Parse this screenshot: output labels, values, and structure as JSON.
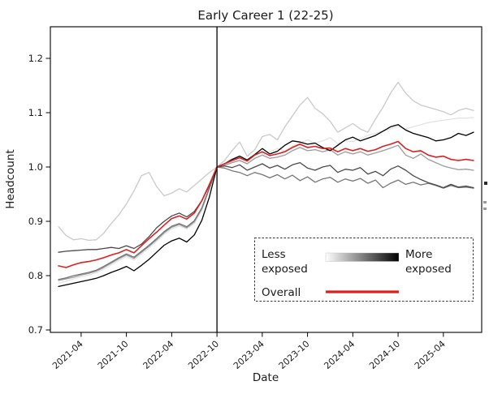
{
  "title": "Early Career 1 (22-25)",
  "legend": {
    "less_line1": "Less",
    "less_line2": "exposed",
    "more_line1": "More",
    "more_line2": "exposed",
    "overall_label": "Overall",
    "gradient_start_color": "#ffffff",
    "gradient_end_color": "#000000",
    "overall_color": "#dd1f1f"
  },
  "chart_data": {
    "type": "line",
    "title": "Early Career 1 (22-25)",
    "xlabel": "Date",
    "ylabel": "Headcount",
    "ylim": [
      0.7,
      1.25
    ],
    "yticks": [
      0.7,
      0.8,
      0.9,
      1.0,
      1.1,
      1.2
    ],
    "xtick_labels": [
      "2021-04",
      "2021-10",
      "2022-04",
      "2022-10",
      "2023-04",
      "2023-10",
      "2024-04",
      "2024-10",
      "2025-04"
    ],
    "vline_month": "2022-10",
    "legend_position": "lower right inside axes, dashed box",
    "grid": false,
    "x_months": [
      "2021-01",
      "2021-02",
      "2021-03",
      "2021-04",
      "2021-05",
      "2021-06",
      "2021-07",
      "2021-08",
      "2021-09",
      "2021-10",
      "2021-11",
      "2021-12",
      "2022-01",
      "2022-02",
      "2022-03",
      "2022-04",
      "2022-05",
      "2022-06",
      "2022-07",
      "2022-08",
      "2022-09",
      "2022-10",
      "2022-11",
      "2022-12",
      "2023-01",
      "2023-02",
      "2023-03",
      "2023-04",
      "2023-05",
      "2023-06",
      "2023-07",
      "2023-08",
      "2023-09",
      "2023-10",
      "2023-11",
      "2023-12",
      "2024-01",
      "2024-02",
      "2024-03",
      "2024-04",
      "2024-05",
      "2024-06",
      "2024-07",
      "2024-08",
      "2024-09",
      "2024-10",
      "2024-11",
      "2024-12",
      "2025-01",
      "2025-02",
      "2025-03",
      "2025-04",
      "2025-05",
      "2025-06",
      "2025-07",
      "2025-08"
    ],
    "series": [
      {
        "name": "exposure_group_1_least_exposed",
        "color": "#e3e3e3",
        "values": [
          0.786,
          0.79,
          0.794,
          0.798,
          0.801,
          0.805,
          0.812,
          0.82,
          0.828,
          0.835,
          0.829,
          0.84,
          0.851,
          0.863,
          0.876,
          0.886,
          0.891,
          0.886,
          0.896,
          0.92,
          0.958,
          1.0,
          1.004,
          1.01,
          1.013,
          1.006,
          1.016,
          1.022,
          1.028,
          1.034,
          1.03,
          1.038,
          1.044,
          1.05,
          1.044,
          1.048,
          1.054,
          1.043,
          1.048,
          1.047,
          1.052,
          1.058,
          1.062,
          1.066,
          1.07,
          1.075,
          1.07,
          1.074,
          1.078,
          1.082,
          1.084,
          1.086,
          1.088,
          1.09,
          1.09,
          1.091
        ]
      },
      {
        "name": "exposure_group_2",
        "color": "#c9c9c9",
        "values": [
          0.89,
          0.874,
          0.866,
          0.868,
          0.865,
          0.866,
          0.878,
          0.896,
          0.912,
          0.932,
          0.956,
          0.984,
          0.99,
          0.964,
          0.947,
          0.952,
          0.96,
          0.954,
          0.966,
          0.978,
          0.99,
          1.0,
          1.012,
          1.03,
          1.046,
          1.02,
          1.032,
          1.056,
          1.06,
          1.05,
          1.074,
          1.094,
          1.114,
          1.128,
          1.108,
          1.098,
          1.084,
          1.064,
          1.072,
          1.08,
          1.07,
          1.064,
          1.088,
          1.11,
          1.136,
          1.156,
          1.136,
          1.122,
          1.114,
          1.11,
          1.106,
          1.102,
          1.096,
          1.104,
          1.108,
          1.104
        ]
      },
      {
        "name": "exposure_group_3",
        "color": "#9b9b9b",
        "values": [
          0.791,
          0.794,
          0.797,
          0.801,
          0.804,
          0.808,
          0.815,
          0.823,
          0.831,
          0.838,
          0.832,
          0.843,
          0.854,
          0.866,
          0.879,
          0.889,
          0.894,
          0.888,
          0.899,
          0.923,
          0.96,
          1.0,
          1.003,
          1.008,
          1.012,
          1.006,
          1.016,
          1.022,
          1.016,
          1.018,
          1.022,
          1.03,
          1.036,
          1.03,
          1.032,
          1.028,
          1.032,
          1.022,
          1.028,
          1.024,
          1.028,
          1.022,
          1.026,
          1.03,
          1.035,
          1.04,
          1.022,
          1.016,
          1.024,
          1.014,
          1.008,
          1.002,
          0.998,
          0.995,
          0.996,
          0.994
        ]
      },
      {
        "name": "exposure_group_4",
        "color": "#757575",
        "values": [
          0.793,
          0.796,
          0.8,
          0.803,
          0.806,
          0.81,
          0.817,
          0.825,
          0.833,
          0.84,
          0.834,
          0.845,
          0.856,
          0.868,
          0.881,
          0.891,
          0.896,
          0.89,
          0.901,
          0.925,
          0.962,
          1.0,
          0.998,
          0.993,
          0.99,
          0.984,
          0.99,
          0.986,
          0.98,
          0.986,
          0.978,
          0.985,
          0.975,
          0.982,
          0.972,
          0.978,
          0.981,
          0.972,
          0.978,
          0.974,
          0.979,
          0.97,
          0.976,
          0.962,
          0.97,
          0.976,
          0.968,
          0.972,
          0.967,
          0.97,
          0.966,
          0.961,
          0.966,
          0.962,
          0.963,
          0.961
        ]
      },
      {
        "name": "exposure_group_5",
        "color": "#4a4a4a",
        "values": [
          0.843,
          0.845,
          0.846,
          0.847,
          0.848,
          0.848,
          0.85,
          0.852,
          0.85,
          0.855,
          0.85,
          0.858,
          0.872,
          0.888,
          0.9,
          0.91,
          0.915,
          0.908,
          0.918,
          0.938,
          0.966,
          1.0,
          1.002,
          0.999,
          1.004,
          0.994,
          1.0,
          1.006,
          0.998,
          1.003,
          0.996,
          1.004,
          1.008,
          0.998,
          0.994,
          1.0,
          1.003,
          0.99,
          0.996,
          0.994,
          0.999,
          0.987,
          0.992,
          0.984,
          0.996,
          1.002,
          0.994,
          0.984,
          0.977,
          0.971,
          0.967,
          0.962,
          0.968,
          0.963,
          0.965,
          0.962
        ]
      },
      {
        "name": "exposure_group_6_most_exposed",
        "color": "#000000",
        "values": [
          0.78,
          0.783,
          0.786,
          0.789,
          0.792,
          0.795,
          0.8,
          0.806,
          0.811,
          0.817,
          0.809,
          0.819,
          0.83,
          0.843,
          0.856,
          0.864,
          0.869,
          0.862,
          0.875,
          0.902,
          0.945,
          1.0,
          1.006,
          1.014,
          1.02,
          1.013,
          1.023,
          1.034,
          1.024,
          1.029,
          1.04,
          1.048,
          1.046,
          1.042,
          1.044,
          1.036,
          1.03,
          1.04,
          1.05,
          1.055,
          1.048,
          1.053,
          1.058,
          1.066,
          1.074,
          1.078,
          1.068,
          1.062,
          1.058,
          1.054,
          1.048,
          1.05,
          1.054,
          1.062,
          1.058,
          1.064
        ]
      },
      {
        "name": "overall",
        "color": "#dd1f1f",
        "values": [
          0.818,
          0.815,
          0.82,
          0.824,
          0.826,
          0.829,
          0.833,
          0.838,
          0.842,
          0.848,
          0.842,
          0.855,
          0.868,
          0.88,
          0.893,
          0.905,
          0.91,
          0.904,
          0.915,
          0.938,
          0.968,
          1.0,
          1.006,
          1.012,
          1.017,
          1.011,
          1.022,
          1.028,
          1.021,
          1.024,
          1.028,
          1.036,
          1.042,
          1.036,
          1.038,
          1.034,
          1.035,
          1.028,
          1.034,
          1.03,
          1.034,
          1.029,
          1.032,
          1.038,
          1.042,
          1.047,
          1.034,
          1.028,
          1.03,
          1.022,
          1.018,
          1.02,
          1.014,
          1.012,
          1.014,
          1.012
        ]
      }
    ]
  }
}
